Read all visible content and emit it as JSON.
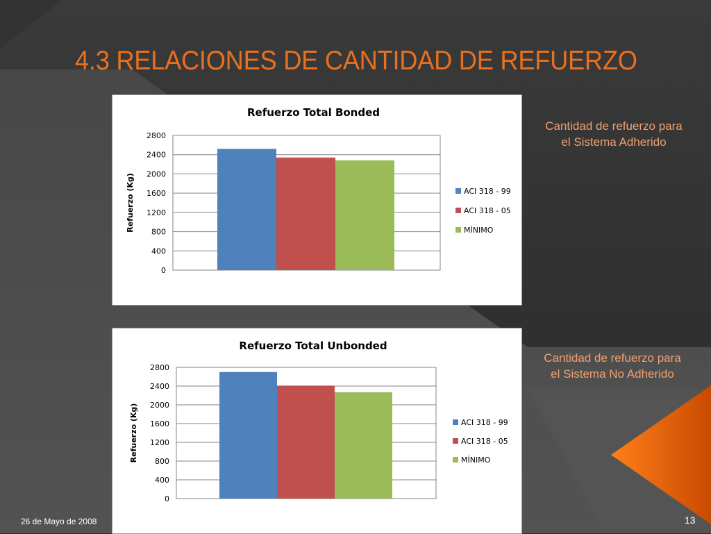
{
  "slide": {
    "title": "4.3 RELACIONES DE CANTIDAD DE REFUERZO",
    "footer_date": "26 de Mayo de 2008",
    "page_number": "13",
    "accent_color": "#e8701f",
    "background_color": "#2b2b2b"
  },
  "notes": {
    "bonded": "Cantidad de refuerzo para el Sistema Adherido",
    "unbonded": "Cantidad de refuerzo para el Sistema No Adherido"
  },
  "chart_data": [
    {
      "type": "bar",
      "title": "Refuerzo Total Bonded",
      "xlabel": "",
      "ylabel": "Refuerzo (Kg)",
      "categories": [
        ""
      ],
      "ylim": [
        0,
        2800
      ],
      "yticks": [
        0,
        400,
        800,
        1200,
        1600,
        2000,
        2400,
        2800
      ],
      "grid": true,
      "legend": "right",
      "series": [
        {
          "name": "ACI 318 - 99",
          "color": "#4f81bd",
          "values": [
            2520
          ]
        },
        {
          "name": "ACI 318 - 05",
          "color": "#c0504d",
          "values": [
            2340
          ]
        },
        {
          "name": "MÍNIMO",
          "color": "#9bbb59",
          "values": [
            2280
          ]
        }
      ]
    },
    {
      "type": "bar",
      "title": "Refuerzo Total Unbonded",
      "xlabel": "",
      "ylabel": "Refuerzo (Kg)",
      "categories": [
        ""
      ],
      "ylim": [
        0,
        2800
      ],
      "yticks": [
        0,
        400,
        800,
        1200,
        1600,
        2000,
        2400,
        2800
      ],
      "grid": true,
      "legend": "right",
      "series": [
        {
          "name": "ACI 318 - 99",
          "color": "#4f81bd",
          "values": [
            2700
          ]
        },
        {
          "name": "ACI 318 - 05",
          "color": "#c0504d",
          "values": [
            2410
          ]
        },
        {
          "name": "MÍNIMO",
          "color": "#9bbb59",
          "values": [
            2270
          ]
        }
      ]
    }
  ]
}
